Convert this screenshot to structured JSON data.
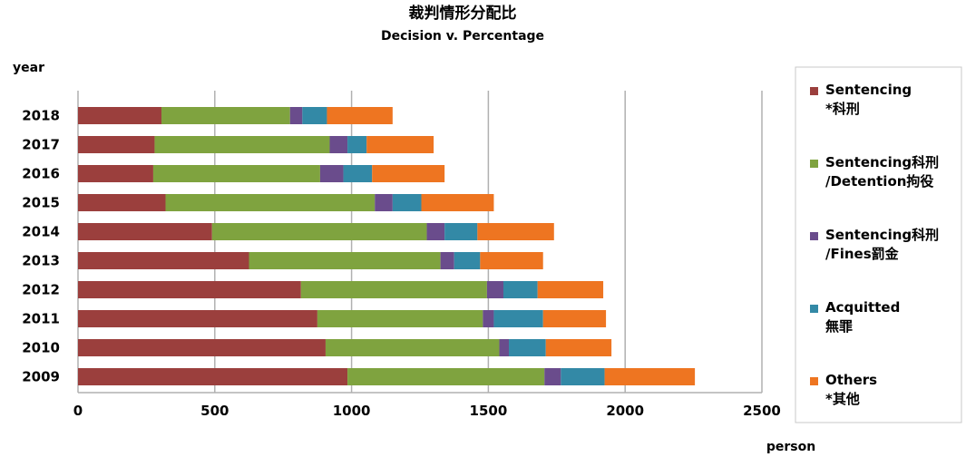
{
  "chart_data": {
    "type": "bar",
    "orientation": "horizontal",
    "stacked": true,
    "title": "裁判情形分配比",
    "subtitle": "Decision v. Percentage",
    "ylabel": "year",
    "xlabel": "person",
    "xlim": [
      0,
      2500
    ],
    "xticks": [
      "0",
      "500",
      "1000",
      "1500",
      "2000",
      "2500"
    ],
    "grid": "vertical",
    "legend_position": "right",
    "categories": [
      "2018",
      "2017",
      "2016",
      "2015",
      "2014",
      "2013",
      "2012",
      "2011",
      "2010",
      "2009"
    ],
    "series": [
      {
        "name": "Sentencing *科刑",
        "legend_lines": [
          "Sentencing",
          "*科刑"
        ],
        "color": "#9B3F3D",
        "values": [
          305,
          280,
          275,
          320,
          490,
          625,
          815,
          875,
          905,
          985
        ]
      },
      {
        "name": "Sentencing科刑 /Detention拘役",
        "legend_lines": [
          "Sentencing科刑",
          "/Detention拘役"
        ],
        "color": "#7FA33F",
        "values": [
          470,
          640,
          610,
          765,
          785,
          700,
          680,
          605,
          635,
          720
        ]
      },
      {
        "name": "Sentencing科刑 /Fines罰金",
        "legend_lines": [
          "Sentencing科刑",
          "/Fines罰金"
        ],
        "color": "#6A4C8C",
        "values": [
          45,
          65,
          85,
          65,
          65,
          50,
          60,
          40,
          35,
          60
        ]
      },
      {
        "name": "Acquitted 無罪",
        "legend_lines": [
          "Acquitted",
          "無罪"
        ],
        "color": "#3389A6",
        "values": [
          90,
          70,
          105,
          105,
          120,
          95,
          125,
          180,
          135,
          160
        ]
      },
      {
        "name": "Others *其他",
        "legend_lines": [
          "Others",
          "*其他"
        ],
        "color": "#EE7521",
        "values": [
          240,
          245,
          265,
          265,
          280,
          230,
          240,
          230,
          240,
          330
        ]
      }
    ]
  }
}
